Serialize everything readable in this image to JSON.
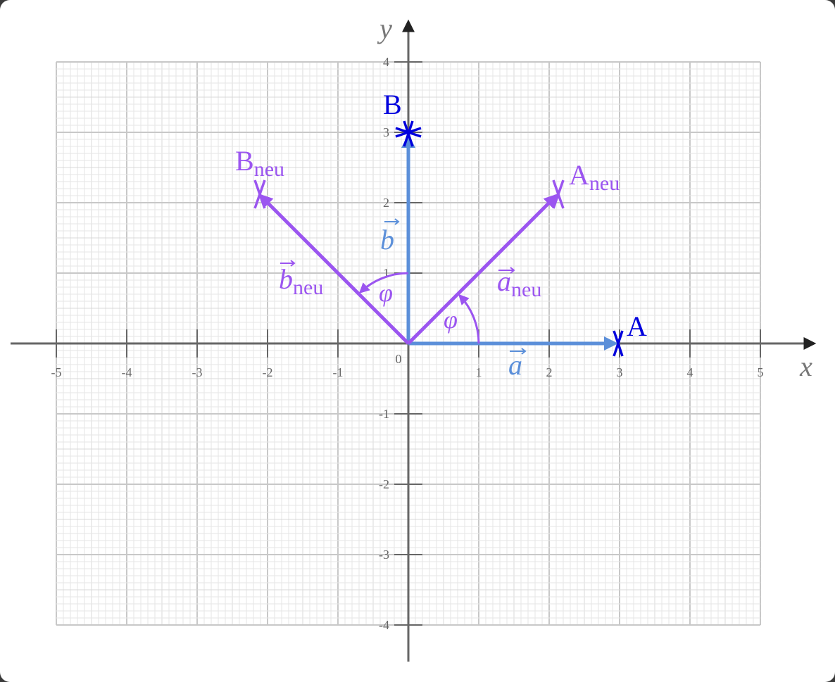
{
  "axes": {
    "x_label": "x",
    "y_label": "y",
    "origin": 0,
    "x_ticks": [
      -5,
      -4,
      -3,
      -2,
      -1,
      1,
      2,
      3,
      4,
      5
    ],
    "y_ticks": [
      -4,
      -3,
      -2,
      -1,
      1,
      2,
      3,
      4
    ]
  },
  "points": [
    {
      "label": "A"
    },
    {
      "label": "B"
    },
    {
      "label": "A",
      "sub": "neu"
    },
    {
      "label": "B",
      "sub": "neu"
    }
  ],
  "vectors": [
    {
      "label": "a"
    },
    {
      "label": "b"
    },
    {
      "label": "a",
      "sub": "neu"
    },
    {
      "label": "b",
      "sub": "neu"
    }
  ],
  "angle_label": "φ"
}
